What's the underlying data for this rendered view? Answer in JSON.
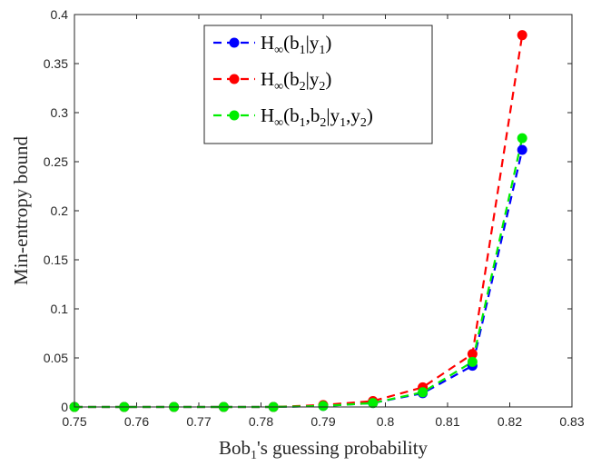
{
  "chart_data": {
    "type": "line",
    "xlabel_parts": [
      "Bob",
      "1",
      "'s guessing probability"
    ],
    "ylabel": "Min-entropy bound",
    "xlim": [
      0.75,
      0.83
    ],
    "ylim": [
      0,
      0.4
    ],
    "xticks": [
      0.75,
      0.76,
      0.77,
      0.78,
      0.79,
      0.8,
      0.81,
      0.82,
      0.83
    ],
    "xtick_labels": [
      "0.75",
      "0.76",
      "0.77",
      "0.78",
      "0.79",
      "0.8",
      "0.81",
      "0.82",
      "0.83"
    ],
    "yticks": [
      0,
      0.05,
      0.1,
      0.15,
      0.2,
      0.25,
      0.3,
      0.35,
      0.4
    ],
    "ytick_labels": [
      "0",
      "0.05",
      "0.1",
      "0.15",
      "0.2",
      "0.25",
      "0.3",
      "0.35",
      "0.4"
    ],
    "grid": false,
    "legend_position": "top-right",
    "x": [
      0.75,
      0.758,
      0.766,
      0.774,
      0.782,
      0.79,
      0.798,
      0.806,
      0.814,
      0.822
    ],
    "series": [
      {
        "name": "H∞(b1|y1)",
        "legend_parts": [
          [
            "H",
            "base"
          ],
          [
            "∞",
            "sub"
          ],
          [
            "(b",
            "base"
          ],
          [
            "1",
            "sub"
          ],
          [
            "|y",
            "base"
          ],
          [
            "1",
            "sub"
          ],
          [
            ")",
            "base"
          ]
        ],
        "color": "#0000ff",
        "values": [
          0,
          0,
          0,
          0,
          0,
          0.001,
          0.004,
          0.014,
          0.042,
          0.262
        ]
      },
      {
        "name": "H∞(b2|y2)",
        "legend_parts": [
          [
            "H",
            "base"
          ],
          [
            "∞",
            "sub"
          ],
          [
            "(b",
            "base"
          ],
          [
            "2",
            "sub"
          ],
          [
            "|y",
            "base"
          ],
          [
            "2",
            "sub"
          ],
          [
            ")",
            "base"
          ]
        ],
        "color": "#ff0000",
        "values": [
          0,
          0,
          0,
          0,
          0,
          0.002,
          0.006,
          0.02,
          0.054,
          0.379
        ]
      },
      {
        "name": "H∞(b1,b2|y1,y2)",
        "legend_parts": [
          [
            "H",
            "base"
          ],
          [
            "∞",
            "sub"
          ],
          [
            "(b",
            "base"
          ],
          [
            "1",
            "sub"
          ],
          [
            ",b",
            "base"
          ],
          [
            "2",
            "sub"
          ],
          [
            "|y",
            "base"
          ],
          [
            "1",
            "sub"
          ],
          [
            ",y",
            "base"
          ],
          [
            "2",
            "sub"
          ],
          [
            ")",
            "base"
          ]
        ],
        "color": "#00ee00",
        "values": [
          0,
          0,
          0,
          0,
          0,
          0.001,
          0.004,
          0.015,
          0.046,
          0.274
        ]
      }
    ]
  }
}
